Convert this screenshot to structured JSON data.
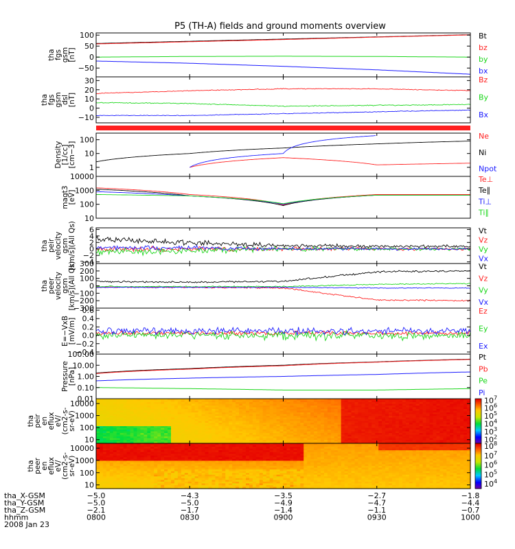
{
  "title": "P5 (TH-A) fields and ground moments overview",
  "colors": {
    "red": "#ff1f1f",
    "green": "#19d619",
    "blue": "#1a1aff",
    "black": "#000000"
  },
  "chart_data": [
    {
      "id": "fgs_gsm",
      "type": "line",
      "ylabel": [
        "tha",
        "fgs",
        "gsm",
        "[nT]"
      ],
      "yticks": [
        "100",
        "50",
        "0",
        "−50"
      ],
      "ytick_values": [
        100,
        50,
        0,
        -50
      ],
      "ylim": [
        -90,
        110
      ],
      "x": [
        "0800",
        "0830",
        "0900",
        "0930",
        "1000"
      ],
      "series": [
        {
          "name": "Bt",
          "color": "black",
          "values": [
            62,
            72,
            82,
            92,
            102
          ]
        },
        {
          "name": "bz",
          "color": "red",
          "values": [
            60,
            70,
            80,
            91,
            101
          ]
        },
        {
          "name": "by",
          "color": "green",
          "values": [
            0,
            3,
            4,
            3,
            0
          ]
        },
        {
          "name": "bx",
          "color": "blue",
          "values": [
            -18,
            -28,
            -42,
            -58,
            -78
          ]
        }
      ]
    },
    {
      "id": "fgs_dsl",
      "type": "line",
      "ylabel": [
        "tha",
        "fgs",
        "gsm",
        "dsl",
        "[nT]"
      ],
      "yticks": [
        "30",
        "20",
        "10",
        "0",
        "−10"
      ],
      "ytick_values": [
        30,
        20,
        10,
        0,
        -10
      ],
      "ylim": [
        -16,
        34
      ],
      "x": [
        "0800",
        "0830",
        "0900",
        "0930",
        "1000"
      ],
      "series": [
        {
          "name": "Bz",
          "color": "red",
          "values": [
            16,
            19,
            21,
            21,
            19
          ]
        },
        {
          "name": "By",
          "color": "green",
          "values": [
            6,
            5,
            2,
            3,
            4
          ]
        },
        {
          "name": "Bx",
          "color": "blue",
          "values": [
            -8,
            -8,
            -6,
            -4,
            -2
          ]
        }
      ]
    },
    {
      "id": "density",
      "type": "line",
      "ylabel": [
        "Density",
        "[1/cc]",
        "[cm−3]"
      ],
      "yticks": [
        "100",
        "10",
        "1"
      ],
      "ytick_values": [
        100,
        10,
        1
      ],
      "ylim": [
        0.22,
        300
      ],
      "log": true,
      "x": [
        "0800",
        "0830",
        "0900",
        "0930",
        "1000"
      ],
      "series": [
        {
          "name": "Ne",
          "color": "red",
          "values": [
            null,
            1,
            5,
            1.5,
            2
          ]
        },
        {
          "name": "Ni",
          "color": "black",
          "values": [
            2.5,
            10,
            25,
            50,
            80
          ]
        },
        {
          "name": "Npot",
          "color": "blue",
          "values": [
            null,
            1,
            10,
            200,
            null
          ]
        }
      ]
    },
    {
      "id": "temperature",
      "type": "line",
      "ylabel": [
        "magt3",
        "[eV]"
      ],
      "yticks": [
        "10000",
        "1000",
        "100",
        "10"
      ],
      "ytick_values": [
        10000,
        1000,
        100,
        10
      ],
      "ylim": [
        10,
        10000
      ],
      "log": true,
      "x": [
        "0800",
        "0830",
        "0900",
        "0930",
        "1000"
      ],
      "series": [
        {
          "name": "Te⊥",
          "color": "red",
          "values": [
            1500,
            500,
            90,
            500,
            500
          ]
        },
        {
          "name": "Te∥",
          "color": "black",
          "values": [
            1200,
            400,
            80,
            450,
            450
          ]
        },
        {
          "name": "Ti⊥",
          "color": "blue",
          "values": [
            800,
            400,
            100,
            450,
            450
          ]
        },
        {
          "name": "Ti∥",
          "color": "green",
          "values": [
            500,
            400,
            110,
            450,
            450
          ]
        }
      ]
    },
    {
      "id": "peir_velocity",
      "type": "line",
      "ylabel": [
        "tha",
        "peir",
        "velocity",
        "gsm",
        "[km/s](All Qs)"
      ],
      "yticks": [
        "6",
        "4",
        "2",
        "0",
        "−2",
        "−4"
      ],
      "ytick_values": [
        6,
        4,
        2,
        0,
        -2,
        -4
      ],
      "ylim": [
        -4.5,
        6.5
      ],
      "x": [
        "0800",
        "0830",
        "0900",
        "0930",
        "1000"
      ],
      "series": [
        {
          "name": "Vt",
          "color": "black",
          "values": [
            3,
            2,
            1,
            0.8,
            0.8
          ]
        },
        {
          "name": "Vz",
          "color": "red",
          "values": [
            0,
            0,
            0,
            0,
            0
          ]
        },
        {
          "name": "Vy",
          "color": "green",
          "values": [
            -1,
            -0.5,
            0,
            0,
            0
          ]
        },
        {
          "name": "Vx",
          "color": "blue",
          "values": [
            0.5,
            0.3,
            0,
            0,
            0
          ]
        }
      ]
    },
    {
      "id": "peer_velocity",
      "type": "line",
      "ylabel": [
        "tha",
        "peer",
        "velocity",
        "gsm",
        "[km/s](All Qs)"
      ],
      "yticks": [
        "300",
        "200",
        "100",
        "0",
        "−100",
        "−200",
        "−300"
      ],
      "ytick_values": [
        300,
        200,
        100,
        0,
        -100,
        -200,
        -300
      ],
      "ylim": [
        -300,
        300
      ],
      "x": [
        "0800",
        "0830",
        "0900",
        "0930",
        "1000"
      ],
      "series": [
        {
          "name": "Vt",
          "color": "black",
          "values": [
            60,
            50,
            60,
            190,
            200
          ]
        },
        {
          "name": "Vz",
          "color": "red",
          "values": [
            -20,
            -20,
            -30,
            -190,
            -200
          ]
        },
        {
          "name": "Vy",
          "color": "green",
          "values": [
            -10,
            -10,
            -10,
            20,
            30
          ]
        },
        {
          "name": "Vx",
          "color": "blue",
          "values": [
            -20,
            -20,
            -20,
            -30,
            -30
          ]
        }
      ]
    },
    {
      "id": "efield",
      "type": "line",
      "ylabel": [
        "E=−VxB",
        "[mV/m]"
      ],
      "yticks": [
        "0.6",
        "0.4",
        "0.2",
        "0.0",
        "−0.2",
        "−0.4"
      ],
      "ytick_values": [
        0.6,
        0.4,
        0.2,
        0,
        -0.2,
        -0.4
      ],
      "ylim": [
        -0.45,
        0.65
      ],
      "x": [
        "0800",
        "0830",
        "0900",
        "0930",
        "1000"
      ],
      "series": [
        {
          "name": "Ez",
          "color": "red",
          "values": [
            0.05,
            0.05,
            0.05,
            0.05,
            0.05
          ]
        },
        {
          "name": "Ey",
          "color": "green",
          "values": [
            0,
            0,
            0,
            0,
            0
          ]
        },
        {
          "name": "Ex",
          "color": "blue",
          "values": [
            0.1,
            0.1,
            0.1,
            0.1,
            0.1
          ]
        }
      ]
    },
    {
      "id": "pressure",
      "type": "line",
      "ylabel": [
        "Pressure",
        "[nPa]"
      ],
      "yticks": [
        "100.00",
        "10.00",
        "1.00",
        "0.10",
        "0.01"
      ],
      "ytick_values": [
        100,
        10,
        1,
        0.1,
        0.01
      ],
      "ylim": [
        0.01,
        100
      ],
      "log": true,
      "x": [
        "0800",
        "0830",
        "0900",
        "0930",
        "1000"
      ],
      "series": [
        {
          "name": "Pt",
          "color": "black",
          "values": [
            2,
            5,
            10,
            20,
            35
          ]
        },
        {
          "name": "Pb",
          "color": "red",
          "values": [
            1.8,
            4.5,
            9,
            19,
            33
          ]
        },
        {
          "name": "Pe",
          "color": "green",
          "values": [
            0.1,
            0.08,
            0.06,
            0.06,
            0.08
          ]
        },
        {
          "name": "Pi",
          "color": "blue",
          "values": [
            0.4,
            0.7,
            1,
            1.5,
            2.5
          ]
        }
      ]
    },
    {
      "id": "peir_spectrogram",
      "type": "heatmap",
      "ylabel": [
        "tha",
        "peir",
        "en",
        "eflux",
        "eV/",
        "(cm2-s-",
        "sr-eV)"
      ],
      "yticks": [
        "10000",
        "1000",
        "100",
        "10"
      ],
      "ytick_values": [
        10000,
        1000,
        100,
        10
      ],
      "ylim": [
        5,
        25000
      ],
      "log": true,
      "colorbar": {
        "ticks": [
          "10^7",
          "10^6",
          "10^5",
          "10^4",
          "10^3",
          "10^2"
        ],
        "tick_exponents": [
          7,
          6,
          5,
          4,
          3,
          2
        ],
        "range_exponent": [
          1.5,
          7.2
        ]
      }
    },
    {
      "id": "peer_spectrogram",
      "type": "heatmap",
      "ylabel": [
        "tha",
        "peer",
        "en",
        "eflux",
        "eV/",
        "(cm2-s-",
        "sr-eV)"
      ],
      "yticks": [
        "10000",
        "1000",
        "100",
        "10"
      ],
      "ytick_values": [
        10000,
        1000,
        100,
        10
      ],
      "ylim": [
        5,
        25000
      ],
      "log": true,
      "colorbar": {
        "ticks": [
          "10^8",
          "10^7",
          "10^6",
          "10^5",
          "10^4"
        ],
        "tick_exponents": [
          8,
          7,
          6,
          5,
          4
        ],
        "range_exponent": [
          3.5,
          8.3
        ]
      }
    }
  ],
  "ephemeris": {
    "rows": [
      {
        "label": "tha_X-GSM",
        "values": [
          "−5.0",
          "−4.3",
          "−3.5",
          "−2.7",
          "−1.8"
        ]
      },
      {
        "label": "tha_Y-GSM",
        "values": [
          "−5.0",
          "−5.0",
          "−4.9",
          "−4.7",
          "−4.4"
        ]
      },
      {
        "label": "tha_Z-GSM",
        "values": [
          "−2.1",
          "−1.7",
          "−1.4",
          "−1.1",
          "−0.7"
        ]
      },
      {
        "label": "hhmm",
        "values": [
          "0800",
          "0830",
          "0900",
          "0930",
          "1000"
        ]
      }
    ],
    "date": "2008 Jan 23"
  }
}
